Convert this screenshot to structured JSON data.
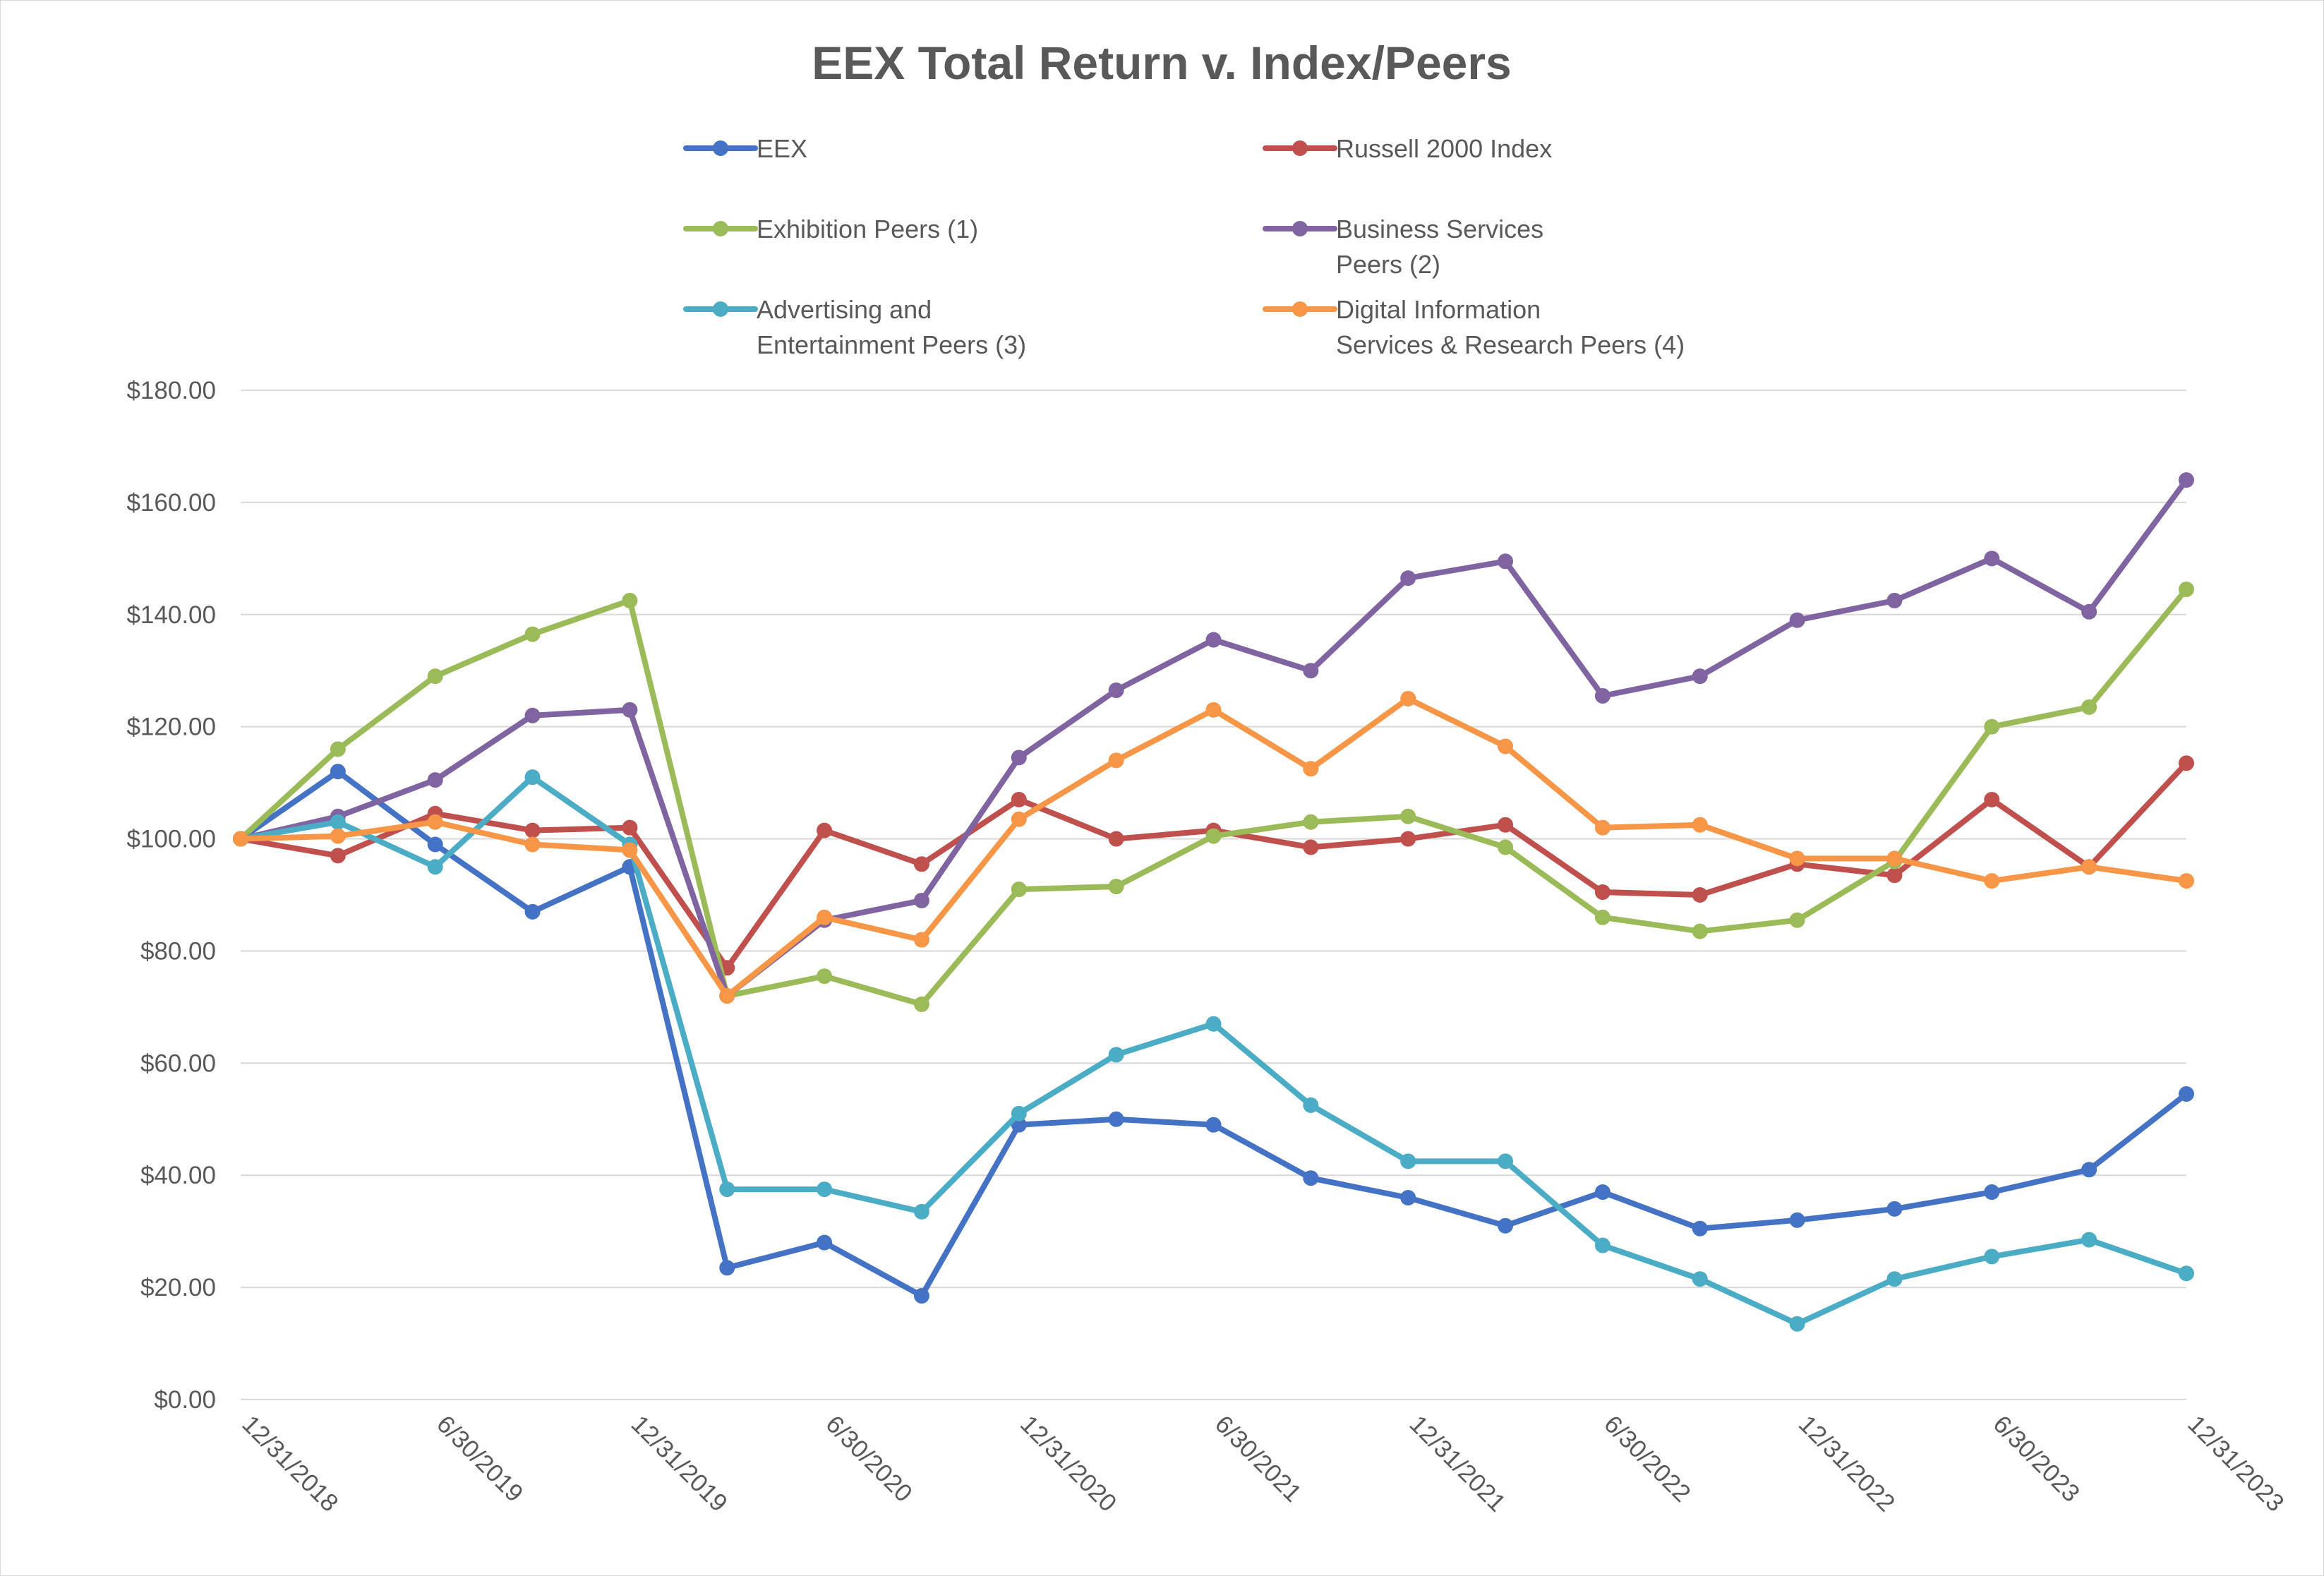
{
  "chart_data": {
    "type": "line",
    "title": "EEX Total Return v. Index/Peers",
    "xlabel": "",
    "ylabel": "",
    "ylim": [
      0,
      180
    ],
    "ytick_values": [
      0,
      20,
      40,
      60,
      80,
      100,
      120,
      140,
      160,
      180
    ],
    "ytick_labels": [
      "$0.00",
      "$20.00",
      "$40.00",
      "$60.00",
      "$80.00",
      "$100.00",
      "$120.00",
      "$140.00",
      "$160.00",
      "$180.00"
    ],
    "x_count": 21,
    "xtick_labels": [
      "12/31/2018",
      "",
      "6/30/2019",
      "",
      "12/31/2019",
      "",
      "6/30/2020",
      "",
      "12/31/2020",
      "",
      "6/30/2021",
      "",
      "12/31/2021",
      "",
      "6/30/2022",
      "",
      "12/31/2022",
      "",
      "6/30/2023",
      "",
      "12/31/2023"
    ],
    "grid": true,
    "legend_position": "top",
    "series": [
      {
        "name": "EEX",
        "color": "#4472C4",
        "values": [
          100,
          112,
          99,
          87,
          95,
          23.5,
          28,
          18.5,
          49,
          50,
          49,
          39.5,
          36,
          31,
          37,
          30.5,
          32,
          34,
          37,
          41,
          54.5
        ]
      },
      {
        "name": "Russell 2000 Index",
        "color": "#C0504D",
        "values": [
          100,
          97,
          104.5,
          101.5,
          102,
          77,
          101.5,
          95.5,
          107,
          100,
          101.5,
          98.5,
          100,
          102.5,
          90.5,
          90,
          95.5,
          93.5,
          107,
          95,
          113.5
        ]
      },
      {
        "name": "Exhibition Peers (1)",
        "color": "#9BBB59",
        "values": [
          100,
          116,
          129,
          136.5,
          142.5,
          72,
          75.5,
          70.5,
          91,
          91.5,
          100.5,
          103,
          104,
          98.5,
          86,
          83.5,
          85.5,
          96,
          120,
          123.5,
          144.5
        ]
      },
      {
        "name": "Business Services Peers (2)",
        "color": "#8064A2",
        "values": [
          100,
          104,
          110.5,
          122,
          123,
          72,
          85.5,
          89,
          114.5,
          126.5,
          135.5,
          130,
          146.5,
          149.5,
          125.5,
          129,
          139,
          142.5,
          150,
          140.5,
          164
        ]
      },
      {
        "name": "Advertising and Entertainment Peers (3)",
        "color": "#4BACC6",
        "values": [
          100,
          103,
          95,
          111,
          99,
          37.5,
          37.5,
          33.5,
          51,
          61.5,
          67,
          52.5,
          42.5,
          42.5,
          27.5,
          21.5,
          13.5,
          21.5,
          25.5,
          28.5,
          22.5
        ]
      },
      {
        "name": "Digital Information Services & Research Peers (4)",
        "color": "#F79646",
        "values": [
          100,
          100.5,
          103,
          99,
          98,
          72,
          86,
          82,
          103.5,
          114,
          123,
          112.5,
          125,
          116.5,
          102,
          102.5,
          96.5,
          96.5,
          92.5,
          95,
          92.5
        ]
      }
    ]
  },
  "legend": {
    "items": [
      {
        "lines": [
          "EEX"
        ],
        "color": "#4472C4"
      },
      {
        "lines": [
          "Russell 2000 Index"
        ],
        "color": "#C0504D"
      },
      {
        "lines": [
          "Exhibition Peers (1)"
        ],
        "color": "#9BBB59"
      },
      {
        "lines": [
          "Business Services",
          "Peers (2)"
        ],
        "color": "#8064A2"
      },
      {
        "lines": [
          "Advertising and",
          "Entertainment Peers (3)"
        ],
        "color": "#4BACC6"
      },
      {
        "lines": [
          "Digital Information",
          "Services & Research Peers (4)"
        ],
        "color": "#F79646"
      }
    ]
  }
}
